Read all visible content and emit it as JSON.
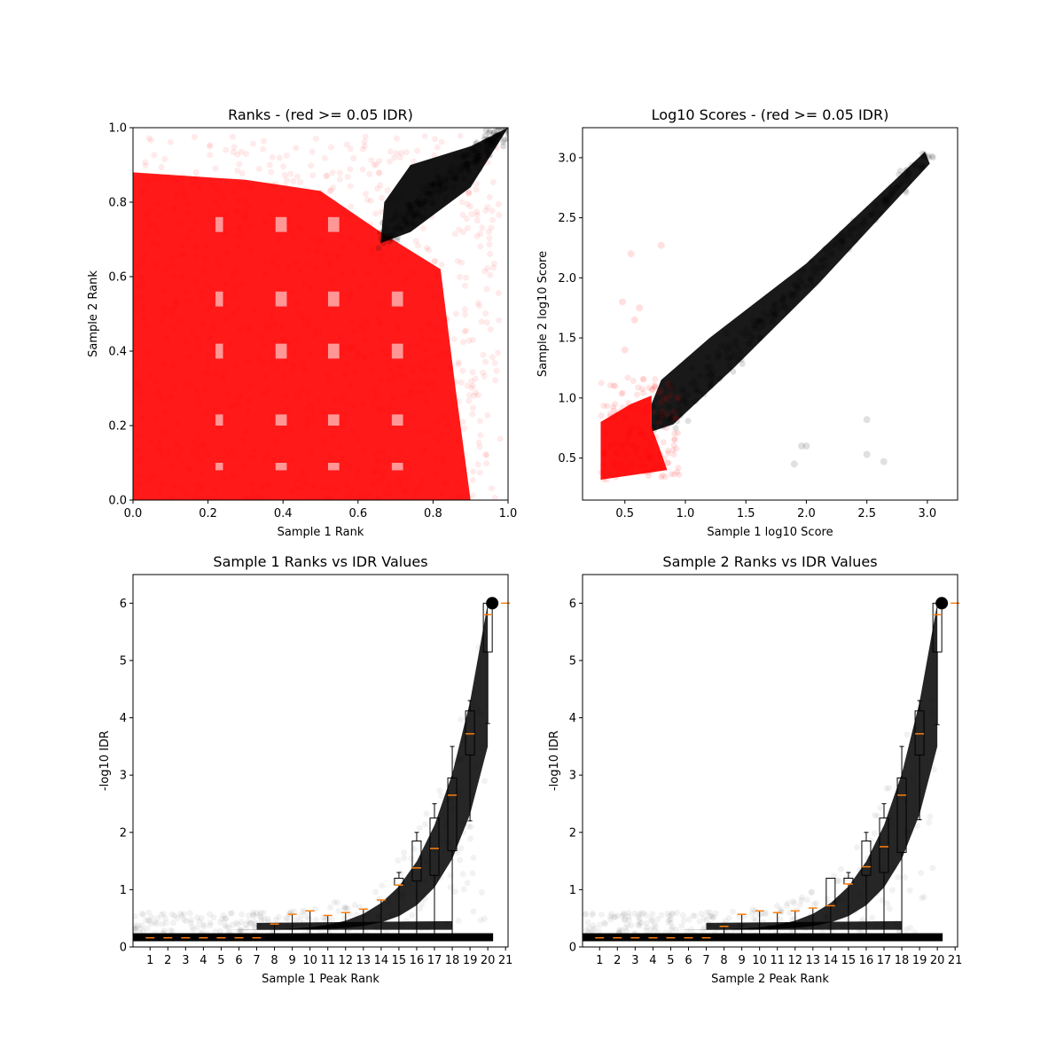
{
  "colors": {
    "idr_pass": "#000000",
    "idr_fail": "#ff0000",
    "median": "#ff7f0e"
  },
  "chart_data": [
    {
      "type": "scatter",
      "title": "Ranks - (red >= 0.05 IDR)",
      "xlabel": "Sample 1 Rank",
      "ylabel": "Sample 2 Rank",
      "xlim": [
        0,
        1
      ],
      "ylim": [
        0,
        1
      ],
      "xticks": [
        "0.0",
        "0.2",
        "0.4",
        "0.6",
        "0.8",
        "1.0"
      ],
      "yticks": [
        "0.0",
        "0.2",
        "0.4",
        "0.6",
        "0.8",
        "1.0"
      ],
      "series": [
        {
          "color": "black",
          "region": "diagonal band from (0.67, 0.68) to (1.0, 1.0)"
        },
        {
          "color": "red",
          "region": "fills most of the plane from 0 to 0.9 on both axes"
        }
      ]
    },
    {
      "type": "scatter",
      "title": "Log10 Scores - (red >= 0.05 IDR)",
      "xlabel": "Sample 1 log10 Score",
      "ylabel": "Sample 2 log10 Score",
      "xlim": [
        0.15,
        3.25
      ],
      "ylim": [
        0.15,
        3.25
      ],
      "xticks": [
        "0.5",
        "1.0",
        "1.5",
        "2.0",
        "2.5",
        "3.0"
      ],
      "yticks": [
        "0.5",
        "1.0",
        "1.5",
        "2.0",
        "2.5",
        "3.0"
      ],
      "series": [
        {
          "color": "black",
          "region": "diagonal from (0.72, 0.72) to (3.05, 3.05)"
        },
        {
          "color": "red",
          "region": "cluster from 0.3 to 0.8 on both axes"
        }
      ]
    },
    {
      "type": "box",
      "title": "Sample 1 Ranks vs IDR Values",
      "xlabel": "Sample 1 Peak Rank",
      "ylabel": "-log10 IDR",
      "ylim": [
        0,
        6.5
      ],
      "yticks": [
        "0",
        "1",
        "2",
        "3",
        "4",
        "5",
        "6"
      ],
      "categories": [
        "1",
        "2",
        "3",
        "4",
        "5",
        "6",
        "7",
        "8",
        "9",
        "10",
        "11",
        "12",
        "13",
        "14",
        "15",
        "16",
        "17",
        "18",
        "19",
        "20",
        "21"
      ],
      "medians": [
        0.16,
        0.16,
        0.16,
        0.16,
        0.16,
        0.16,
        0.16,
        0.4,
        0.57,
        0.63,
        0.55,
        0.6,
        0.66,
        0.82,
        1.08,
        1.38,
        1.72,
        2.65,
        3.72,
        5.8,
        6.0
      ],
      "q1": [
        0.16,
        0.16,
        0.16,
        0.16,
        0.16,
        0.16,
        0.16,
        0.4,
        0.57,
        0.63,
        0.55,
        0.6,
        0.66,
        0.82,
        1.08,
        1.15,
        1.25,
        1.68,
        3.35,
        5.15,
        6.0
      ],
      "q3": [
        0.16,
        0.16,
        0.16,
        0.16,
        0.16,
        0.16,
        0.16,
        0.4,
        0.57,
        0.63,
        0.55,
        0.6,
        0.66,
        0.82,
        1.2,
        1.85,
        2.25,
        2.95,
        4.12,
        6.0,
        6.0
      ],
      "whisker_low": [
        0.16,
        0.16,
        0.16,
        0.16,
        0.16,
        0.16,
        0.16,
        0.16,
        0.16,
        0.16,
        0.16,
        0.16,
        0.16,
        0.16,
        0.16,
        0.16,
        0.16,
        0.16,
        2.2,
        3.9,
        6.0
      ],
      "whisker_high": [
        0.16,
        0.16,
        0.16,
        0.16,
        0.16,
        0.16,
        0.16,
        0.4,
        0.57,
        0.63,
        0.55,
        0.6,
        0.66,
        0.82,
        1.3,
        2.0,
        2.5,
        3.5,
        4.3,
        6.0,
        6.0
      ]
    },
    {
      "type": "box",
      "title": "Sample 2 Ranks vs IDR Values",
      "xlabel": "Sample 2 Peak Rank",
      "ylabel": "-log10 IDR",
      "ylim": [
        0,
        6.5
      ],
      "yticks": [
        "0",
        "1",
        "2",
        "3",
        "4",
        "5",
        "6"
      ],
      "categories": [
        "1",
        "2",
        "3",
        "4",
        "5",
        "6",
        "7",
        "8",
        "9",
        "10",
        "11",
        "12",
        "13",
        "14",
        "15",
        "16",
        "17",
        "18",
        "19",
        "20",
        "21"
      ],
      "medians": [
        0.16,
        0.16,
        0.16,
        0.16,
        0.16,
        0.16,
        0.16,
        0.36,
        0.57,
        0.63,
        0.6,
        0.63,
        0.68,
        0.72,
        1.1,
        1.4,
        1.75,
        2.65,
        3.72,
        5.8,
        6.0
      ],
      "q1": [
        0.16,
        0.16,
        0.16,
        0.16,
        0.16,
        0.16,
        0.16,
        0.36,
        0.57,
        0.63,
        0.6,
        0.63,
        0.68,
        0.72,
        1.1,
        1.25,
        1.3,
        1.65,
        3.35,
        5.15,
        6.0
      ],
      "q3": [
        0.16,
        0.16,
        0.16,
        0.16,
        0.16,
        0.16,
        0.16,
        0.36,
        0.57,
        0.63,
        0.6,
        0.63,
        0.68,
        1.2,
        1.2,
        1.85,
        2.25,
        2.95,
        4.12,
        6.0,
        6.0
      ],
      "whisker_low": [
        0.16,
        0.16,
        0.16,
        0.16,
        0.16,
        0.16,
        0.16,
        0.16,
        0.16,
        0.16,
        0.16,
        0.16,
        0.16,
        0.16,
        0.16,
        0.16,
        0.16,
        0.16,
        2.22,
        3.88,
        6.0
      ],
      "whisker_high": [
        0.16,
        0.16,
        0.16,
        0.16,
        0.16,
        0.16,
        0.16,
        0.36,
        0.57,
        0.63,
        0.6,
        0.63,
        0.68,
        1.2,
        1.3,
        2.0,
        2.5,
        3.5,
        4.3,
        6.0,
        6.0
      ]
    }
  ]
}
